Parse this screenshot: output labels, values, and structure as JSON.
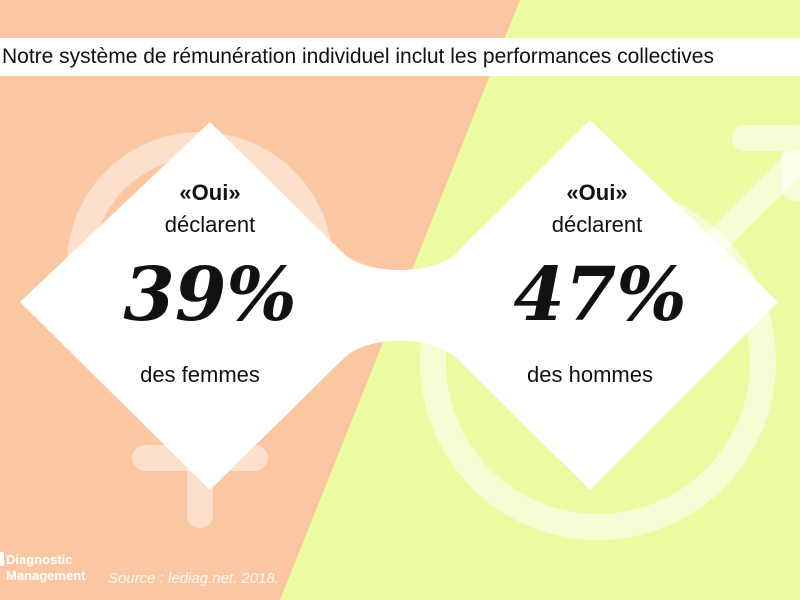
{
  "title": "Notre système de rémunération individuel inclut les performances collectives",
  "colors": {
    "women_bg": "#fbc7a3",
    "men_bg": "#eafba2",
    "card": "#ffffff",
    "symbol": "#ffffff"
  },
  "women": {
    "oui": "«Oui»",
    "declare": "déclarent",
    "percent": "39%",
    "group": "des femmes"
  },
  "men": {
    "oui": "«Oui»",
    "declare": "déclarent",
    "percent": "47%",
    "group": "des hommes"
  },
  "logo": {
    "line1": "Diagnostic",
    "line2": "Management"
  },
  "source": "Source : lediag.net. 2018."
}
